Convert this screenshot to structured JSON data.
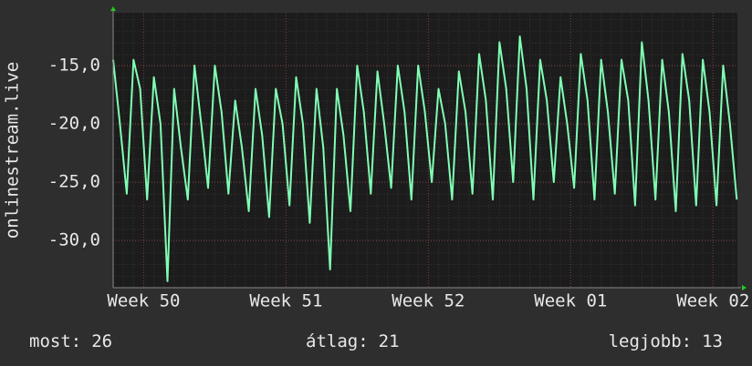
{
  "chart_data": {
    "type": "line",
    "ylabel": "onlinestream.live",
    "x": [
      0,
      0.33,
      0.67,
      1,
      1.33,
      1.67,
      2,
      2.33,
      2.67,
      3,
      3.33,
      3.67,
      4,
      4.33,
      4.67,
      5,
      5.33,
      5.67,
      6,
      6.33,
      6.67,
      7,
      7.33,
      7.67,
      8,
      8.33,
      8.67,
      9,
      9.33,
      9.67,
      10,
      10.33,
      10.67,
      11,
      11.33,
      11.67,
      12,
      12.33,
      12.67,
      13,
      13.33,
      13.67,
      14,
      14.33,
      14.67,
      15,
      15.33,
      15.67,
      16,
      16.33,
      16.67,
      17,
      17.33,
      17.67,
      18,
      18.33,
      18.67,
      19,
      19.33,
      19.67,
      20,
      20.33,
      20.67,
      21,
      21.33,
      21.67,
      22,
      22.33,
      22.67,
      23,
      23.33,
      23.67,
      24,
      24.33,
      24.67,
      25,
      25.33,
      25.67,
      26,
      26.33,
      26.67,
      27,
      27.33,
      27.67,
      28,
      28.33,
      28.67,
      29,
      29.33,
      29.67,
      30,
      30.33,
      30.67
    ],
    "series": [
      {
        "name": "onlinestream.live",
        "color": "#80ffb4",
        "values": [
          -14.5,
          -20,
          -26,
          -14.5,
          -17,
          -26.5,
          -16,
          -20,
          -33.5,
          -17,
          -22,
          -26.5,
          -15,
          -20,
          -25.5,
          -15,
          -19,
          -26,
          -18,
          -22,
          -27.5,
          -17,
          -21,
          -28,
          -17,
          -20,
          -27,
          -16,
          -20,
          -28.5,
          -17,
          -22,
          -32.5,
          -17,
          -21,
          -27.5,
          -15,
          -19,
          -26,
          -15.5,
          -20,
          -25.5,
          -15,
          -19,
          -26.5,
          -15,
          -19,
          -25,
          -17,
          -20,
          -26.5,
          -15.5,
          -19,
          -26,
          -14,
          -18,
          -26.5,
          -13,
          -17,
          -25,
          -12.5,
          -17,
          -26.5,
          -14.5,
          -18,
          -25,
          -16,
          -20,
          -25.5,
          -14,
          -18,
          -26.5,
          -14.5,
          -19,
          -26,
          -14.5,
          -18,
          -27,
          -13,
          -18,
          -26.5,
          -14.5,
          -19,
          -27.5,
          -14,
          -18,
          -27,
          -14.5,
          -19,
          -27,
          -15,
          -20,
          -26.5
        ]
      }
    ],
    "xlim": [
      0,
      30.7
    ],
    "xticks": [
      {
        "value": 1.5,
        "label": "Week 50"
      },
      {
        "value": 8.5,
        "label": "Week 51"
      },
      {
        "value": 15.5,
        "label": "Week 52"
      },
      {
        "value": 22.5,
        "label": "Week 01"
      },
      {
        "value": 29.5,
        "label": "Week 02"
      }
    ],
    "ylim": [
      -34.06,
      -10.47
    ],
    "yticks": [
      {
        "value": -15,
        "label": "-15,0"
      },
      {
        "value": -20,
        "label": "-20,0"
      },
      {
        "value": -25,
        "label": "-25,0"
      },
      {
        "value": -30,
        "label": "-30,0"
      }
    ],
    "grid": true,
    "stats": [
      {
        "label": "most:",
        "value": 26
      },
      {
        "label": "átlag:",
        "value": 21
      },
      {
        "label": "legjobb:",
        "value": 13
      }
    ]
  }
}
